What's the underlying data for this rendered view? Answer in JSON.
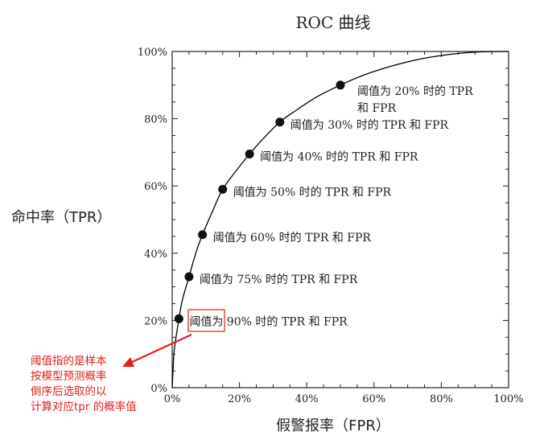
{
  "chart_data": {
    "type": "line",
    "title": "ROC 曲线",
    "xlabel": "假警报率（FPR）",
    "ylabel": "命中率（TPR）",
    "xlim": [
      0,
      100
    ],
    "ylim": [
      0,
      100
    ],
    "x_ticks": [
      "0%",
      "20%",
      "40%",
      "60%",
      "80%",
      "100%"
    ],
    "y_ticks": [
      "0%",
      "20%",
      "40%",
      "60%",
      "80%",
      "100%"
    ],
    "grid": false,
    "curve": {
      "x": [
        0,
        0.5,
        1,
        2,
        3,
        5,
        7,
        9,
        12,
        15,
        19,
        23,
        27,
        32,
        37,
        43,
        50,
        57,
        65,
        73,
        80,
        86,
        90,
        94,
        97,
        100
      ],
      "y": [
        0,
        10,
        14,
        20.5,
        26,
        33,
        40,
        45.5,
        52.5,
        59,
        64.5,
        69.5,
        74,
        79,
        82.6,
        86.5,
        90,
        93,
        95.6,
        97.6,
        98.8,
        99.5,
        99.8,
        99.95,
        100,
        100
      ]
    },
    "points": [
      {
        "x": 2,
        "y": 20.5,
        "label": "阈值为 90% 时的 TPR 和 FPR"
      },
      {
        "x": 5,
        "y": 33,
        "label": "阈值为 75% 时的 TPR 和 FPR"
      },
      {
        "x": 9,
        "y": 45.5,
        "label": "阈值为 60% 时的 TPR 和 FPR"
      },
      {
        "x": 15,
        "y": 59,
        "label": "阈值为 50% 时的 TPR 和 FPR"
      },
      {
        "x": 23,
        "y": 69.5,
        "label": "阈值为 40% 时的 TPR 和 FPR"
      },
      {
        "x": 32,
        "y": 79,
        "label": "阈值为 30% 时的 TPR 和 FPR"
      },
      {
        "x": 50,
        "y": 90,
        "label_lines": [
          "阈值为 20% 时的 TPR",
          "和 FPR"
        ]
      }
    ],
    "highlighted_term": "阈值",
    "annotation": {
      "lines": [
        "阈值指的是样本",
        "按模型预测概率",
        "倒序后选取的以",
        "计算对应tpr 的概率值"
      ]
    },
    "colors": {
      "curve": "#000000",
      "points": "#111111",
      "annotation": "#e0201b"
    }
  }
}
